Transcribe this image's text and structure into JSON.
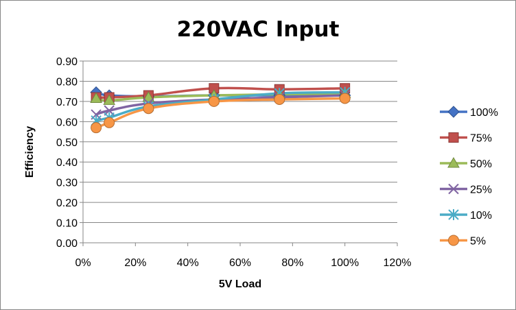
{
  "chart_data": {
    "type": "scatter",
    "title": "220VAC Input",
    "xlabel": "5V Load",
    "ylabel": "Efficiency",
    "xlim": [
      0,
      120
    ],
    "ylim": [
      0,
      0.9
    ],
    "x_ticks": [
      "0%",
      "20%",
      "40%",
      "60%",
      "80%",
      "100%",
      "120%"
    ],
    "y_ticks": [
      "0.00",
      "0.10",
      "0.20",
      "0.30",
      "0.40",
      "0.50",
      "0.60",
      "0.70",
      "0.80",
      "0.90"
    ],
    "grid": "horizontal",
    "legend_position": "right",
    "x": [
      5,
      10,
      25,
      50,
      75,
      100
    ],
    "series": [
      {
        "name": "100%",
        "marker": "diamond",
        "color": "#4472C4",
        "values": [
          0.745,
          0.73,
          0.725,
          0.73,
          0.73,
          0.73
        ]
      },
      {
        "name": "75%",
        "marker": "square",
        "color": "#C0504D",
        "values": [
          0.72,
          0.72,
          0.73,
          0.765,
          0.76,
          0.765
        ]
      },
      {
        "name": "50%",
        "marker": "triangle",
        "color": "#9BBB59",
        "values": [
          0.715,
          0.705,
          0.72,
          0.73,
          0.735,
          0.74
        ]
      },
      {
        "name": "25%",
        "marker": "x",
        "color": "#8064A2",
        "values": [
          0.635,
          0.655,
          0.69,
          0.71,
          0.72,
          0.73
        ]
      },
      {
        "name": "10%",
        "marker": "star",
        "color": "#4BACC6",
        "values": [
          0.605,
          0.62,
          0.675,
          0.71,
          0.74,
          0.745
        ]
      },
      {
        "name": "5%",
        "marker": "circle",
        "color": "#F79646",
        "values": [
          0.57,
          0.595,
          0.665,
          0.7,
          0.71,
          0.715
        ]
      }
    ]
  }
}
